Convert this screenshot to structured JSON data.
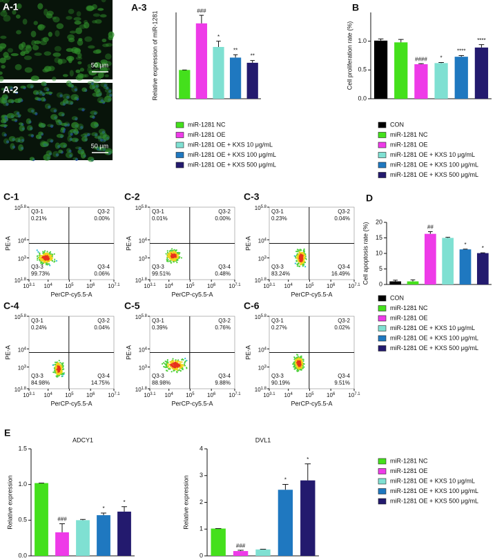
{
  "images": [
    {
      "label": "A-1",
      "scale": "50 µm"
    },
    {
      "label": "A-2",
      "scale": "50 µm"
    }
  ],
  "chart_data": [
    {
      "type": "bar",
      "panel_label": "A-3",
      "ylabel": "Relative expression of miR-1281",
      "categories": [
        "miR-1281 NC",
        "miR-1281 OE",
        "miR-1281 OE + KXS 10 μg/mL",
        "miR-1281 OE + KXS 100 μg/mL",
        "miR-1281 OE + KXS 500 μg/mL"
      ],
      "colors": [
        "#44e01c",
        "#ee3be8",
        "#7fe0d2",
        "#1f78c0",
        "#231a6e"
      ],
      "values": [
        1.0,
        2.62,
        1.8,
        1.43,
        1.25
      ],
      "errors": [
        0,
        0.28,
        0.2,
        0.1,
        0.08
      ],
      "annotations": [
        null,
        "###",
        "*",
        "**",
        "**"
      ],
      "ylim": [
        0,
        3
      ],
      "legend": "below"
    },
    {
      "type": "bar",
      "panel_label": "B",
      "ylabel": "Cell proliferation rate (%)",
      "categories": [
        "CON",
        "miR-1281 NC",
        "miR-1281 OE",
        "miR-1281 OE + KXS 10 μg/mL",
        "miR-1281 OE + KXS 100 μg/mL",
        "miR-1281 OE + KXS 500 μg/mL"
      ],
      "colors": [
        "#000000",
        "#44e01c",
        "#ee3be8",
        "#7fe0d2",
        "#1f78c0",
        "#231a6e"
      ],
      "values": [
        1.01,
        0.98,
        0.6,
        0.62,
        0.73,
        0.89
      ],
      "errors": [
        0.03,
        0.05,
        0.01,
        0.01,
        0.02,
        0.05
      ],
      "annotations": [
        null,
        null,
        "####",
        "*",
        "****",
        "****"
      ],
      "ylim": [
        0,
        1.5
      ],
      "yticks": [
        {
          "value": 0,
          "label": "0.0"
        },
        0.5,
        {
          "value": 1,
          "label": "1.0"
        }
      ],
      "legend": "below"
    },
    {
      "type": "bar",
      "panel_label": "D",
      "ylabel": "Cell apoptosis rate (%)",
      "categories": [
        "CON",
        "miR-1281 NC",
        "miR-1281 OE",
        "miR-1281 OE + KXS 10 μg/mL",
        "miR-1281 OE + KXS 100 μg/mL",
        "miR-1281 OE + KXS 500 μg/mL"
      ],
      "colors": [
        "#000000",
        "#44e01c",
        "#ee3be8",
        "#7fe0d2",
        "#1f78c0",
        "#231a6e"
      ],
      "values": [
        1.0,
        1.0,
        16.3,
        15.0,
        11.3,
        10.1
      ],
      "errors": [
        0.4,
        0.5,
        0.7,
        0.2,
        0.1,
        0.1
      ],
      "annotations": [
        null,
        null,
        "##",
        null,
        "*",
        "*"
      ],
      "ylim": [
        0,
        20
      ],
      "yticks": [
        0,
        5,
        10,
        15,
        20
      ],
      "legend": "below"
    },
    {
      "type": "bar",
      "panel_label": "E",
      "title": "ADCY1",
      "ylabel": "Relative expression",
      "categories": [
        "miR-1281 NC",
        "miR-1281 OE",
        "miR-1281 OE + KXS 10 μg/mL",
        "miR-1281 OE + KXS 100 μg/mL",
        "miR-1281 OE + KXS 500 μg/mL"
      ],
      "colors": [
        "#44e01c",
        "#ee3be8",
        "#7fe0d2",
        "#1f78c0",
        "#231a6e"
      ],
      "values": [
        1.02,
        0.33,
        0.5,
        0.57,
        0.62
      ],
      "errors": [
        0,
        0.12,
        0.01,
        0.03,
        0.07
      ],
      "annotations": [
        null,
        "###",
        null,
        "*",
        "*"
      ],
      "ylim": [
        0,
        1.5
      ],
      "yticks": [
        {
          "value": 0,
          "label": "0.0"
        },
        0.5,
        {
          "value": 1,
          "label": "1.0"
        },
        1.5
      ]
    },
    {
      "type": "bar",
      "title": "DVL1",
      "ylabel": "Relative expression",
      "categories": [
        "miR-1281 NC",
        "miR-1281 OE",
        "miR-1281 OE + KXS 10 μg/mL",
        "miR-1281 OE + KXS 100 μg/mL",
        "miR-1281 OE + KXS 500 μg/mL"
      ],
      "colors": [
        "#44e01c",
        "#ee3be8",
        "#7fe0d2",
        "#1f78c0",
        "#231a6e"
      ],
      "values": [
        1.02,
        0.18,
        0.24,
        2.47,
        2.82
      ],
      "errors": [
        0,
        0.03,
        0.01,
        0.2,
        0.62
      ],
      "annotations": [
        null,
        "###",
        null,
        "*",
        "*"
      ],
      "ylim": [
        0,
        4
      ],
      "yticks": [
        0,
        1,
        2,
        3,
        4
      ],
      "legend": "right"
    }
  ],
  "flow": {
    "x_label": "PerCP-cy5.5-A",
    "y_label": "PE-A",
    "xticks": [
      {
        "value": 3.1,
        "base": "10"
      },
      {
        "value": 4,
        "base": "10"
      },
      {
        "value": 5,
        "base": "10"
      },
      {
        "value": 6,
        "base": "10"
      },
      {
        "value": 7.1,
        "base": "10"
      }
    ],
    "yticks": [
      {
        "value": 1.8,
        "base": "10"
      },
      {
        "value": 3,
        "base": "10"
      },
      {
        "value": 4,
        "base": "10"
      },
      {
        "value": 5.8,
        "base": "10"
      }
    ],
    "panels": [
      {
        "label": "C-1",
        "quadrants": [
          {
            "name": "Q3-1",
            "percent": "0.21%"
          },
          {
            "name": "Q3-2",
            "percent": "0.00%"
          },
          {
            "name": "Q3-3",
            "percent": "99.73%"
          },
          {
            "name": "Q3-4",
            "percent": "0.06%"
          }
        ]
      },
      {
        "label": "C-2",
        "quadrants": [
          {
            "name": "Q3-1",
            "percent": "0.01%"
          },
          {
            "name": "Q3-2",
            "percent": "0.00%"
          },
          {
            "name": "Q3-3",
            "percent": "99.51%"
          },
          {
            "name": "Q3-4",
            "percent": "0.48%"
          }
        ]
      },
      {
        "label": "C-3",
        "quadrants": [
          {
            "name": "Q3-1",
            "percent": "0.23%"
          },
          {
            "name": "Q3-2",
            "percent": "0.04%"
          },
          {
            "name": "Q3-3",
            "percent": "83.24%"
          },
          {
            "name": "Q3-4",
            "percent": "16.49%"
          }
        ]
      },
      {
        "label": "C-4",
        "quadrants": [
          {
            "name": "Q3-1",
            "percent": "0.24%"
          },
          {
            "name": "Q3-2",
            "percent": "0.04%"
          },
          {
            "name": "Q3-3",
            "percent": "84.98%"
          },
          {
            "name": "Q3-4",
            "percent": "14.75%"
          }
        ]
      },
      {
        "label": "C-5",
        "quadrants": [
          {
            "name": "Q3-1",
            "percent": "0.39%"
          },
          {
            "name": "Q3-2",
            "percent": "0.76%"
          },
          {
            "name": "Q3-3",
            "percent": "88.98%"
          },
          {
            "name": "Q3-4",
            "percent": "9.88%"
          }
        ]
      },
      {
        "label": "C-6",
        "quadrants": [
          {
            "name": "Q3-1",
            "percent": "0.27%"
          },
          {
            "name": "Q3-2",
            "percent": "0.02%"
          },
          {
            "name": "Q3-3",
            "percent": "90.19%"
          },
          {
            "name": "Q3-4",
            "percent": "9.51%"
          }
        ]
      }
    ]
  }
}
